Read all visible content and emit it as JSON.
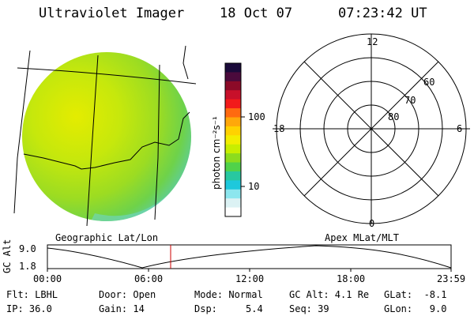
{
  "header": {
    "instrument": "Ultraviolet Imager",
    "date": "18 Oct 07",
    "time": "07:23:42 UT"
  },
  "colorbar": {
    "unit_label": "photon cm⁻²s⁻¹",
    "tick_labels": [
      "100",
      "10"
    ],
    "colors": [
      "#1a0a3a",
      "#4b0a3c",
      "#8c0a28",
      "#c8102a",
      "#f21b1b",
      "#ff6a10",
      "#ffa80a",
      "#ffd200",
      "#f2ee00",
      "#c8ee00",
      "#8cdc1e",
      "#50d24a",
      "#28c8a0",
      "#1ec8dc",
      "#8ce6ee",
      "#dcf2f4",
      "#ffffff"
    ]
  },
  "map_labels": {
    "left": "Geographic Lat/Lon",
    "right": "Apex MLat/MLT"
  },
  "polar_plot": {
    "mlt_labels": {
      "top": "12",
      "right": "6",
      "bottom": "0",
      "left": "18"
    },
    "lat_labels": [
      "60",
      "70",
      "80"
    ]
  },
  "timeline": {
    "ylabel": "GC Alt",
    "yticks": [
      "9.0",
      "1.8"
    ],
    "xticks": [
      "00:00",
      "06:00",
      "12:00",
      "18:00",
      "23:59"
    ],
    "current_marker_color": "#cc0000"
  },
  "status": {
    "row1": {
      "filter": "Flt: LBHL",
      "door": "Door: Open",
      "mode": "Mode: Normal",
      "gc_alt": "GC Alt: 4.1 Re",
      "glat": "GLat:  -8.1"
    },
    "row2": {
      "ip": "IP: 36.0",
      "gain": "Gain: 14",
      "dsp": "Dsp:     5.4",
      "seq": "Seq: 39",
      "glon": "GLon:   9.0"
    }
  }
}
